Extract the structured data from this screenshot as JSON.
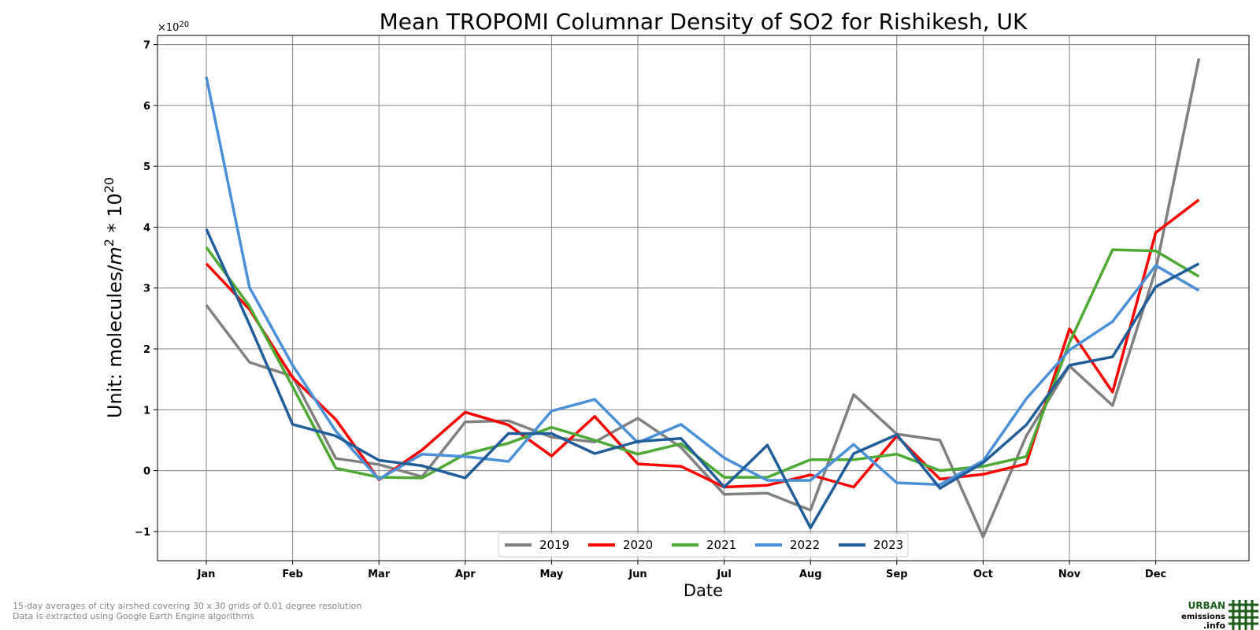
{
  "chart_data": {
    "type": "line",
    "title": "Mean TROPOMI Columnar Density of SO2 for Rishikesh, UK",
    "xlabel": "Date",
    "ylabel_main": "Unit: molecules/",
    "ylabel_m": "m",
    "ylabel_m_exp": "2",
    "ylabel_times": " * 10",
    "ylabel_exp": "20",
    "exponent_prefix": "×10",
    "exponent_power": "20",
    "x_tick_labels": [
      "Jan",
      "Feb",
      "Mar",
      "Apr",
      "May",
      "Jun",
      "Jul",
      "Aug",
      "Sep",
      "Oct",
      "Nov",
      "Dec"
    ],
    "y_ticks": [
      -1,
      0,
      1,
      2,
      3,
      4,
      5,
      6,
      7
    ],
    "y_tick_labels": [
      "−1",
      "0",
      "1",
      "2",
      "3",
      "4",
      "5",
      "6",
      "7"
    ],
    "ylim": [
      -1.48,
      7.15
    ],
    "grid": true,
    "legend_position": "bottom-center",
    "x_periods": [
      "Jan 1-15",
      "Jan 16-31",
      "Feb 1-15",
      "Feb 16-28",
      "Mar 1-15",
      "Mar 16-31",
      "Apr 1-15",
      "Apr 16-30",
      "May 1-15",
      "May 16-31",
      "Jun 1-15",
      "Jun 16-30",
      "Jul 1-15",
      "Jul 16-31",
      "Aug 1-15",
      "Aug 16-31",
      "Sep 1-15",
      "Sep 16-30",
      "Oct 1-15",
      "Oct 16-31",
      "Nov 1-15",
      "Nov 16-30",
      "Dec 1-15",
      "Dec 16-31"
    ],
    "series": [
      {
        "name": "2019",
        "color": "#808080",
        "values": [
          2.72,
          1.78,
          1.55,
          0.2,
          0.1,
          -0.1,
          0.8,
          0.82,
          0.55,
          0.47,
          0.86,
          0.38,
          -0.39,
          -0.37,
          -0.65,
          1.25,
          0.6,
          0.5,
          -1.09,
          0.57,
          1.72,
          1.07,
          3.3,
          6.77
        ]
      },
      {
        "name": "2020",
        "color": "#ff0000",
        "values": [
          3.4,
          2.65,
          1.53,
          0.84,
          -0.15,
          0.34,
          0.96,
          0.75,
          0.24,
          0.89,
          0.11,
          0.07,
          -0.27,
          -0.24,
          -0.07,
          -0.27,
          0.57,
          -0.14,
          -0.06,
          0.11,
          2.33,
          1.29,
          3.91,
          4.45
        ]
      },
      {
        "name": "2021",
        "color": "#4caa34",
        "values": [
          3.67,
          2.7,
          1.38,
          0.04,
          -0.11,
          -0.12,
          0.27,
          0.45,
          0.71,
          0.5,
          0.27,
          0.44,
          -0.11,
          -0.11,
          0.18,
          0.18,
          0.27,
          0.0,
          0.07,
          0.23,
          2.1,
          3.63,
          3.61,
          3.19
        ]
      },
      {
        "name": "2022",
        "color": "#4a90d9",
        "values": [
          6.47,
          3.01,
          1.73,
          0.65,
          -0.14,
          0.27,
          0.23,
          0.15,
          0.98,
          1.17,
          0.46,
          0.76,
          0.21,
          -0.16,
          -0.16,
          0.43,
          -0.2,
          -0.23,
          0.16,
          1.18,
          1.98,
          2.45,
          3.37,
          2.96
        ]
      },
      {
        "name": "2023",
        "color": "#1f5e9a",
        "values": [
          3.97,
          2.4,
          0.76,
          0.57,
          0.17,
          0.08,
          -0.12,
          0.61,
          0.61,
          0.28,
          0.48,
          0.53,
          -0.27,
          0.42,
          -0.94,
          0.28,
          0.59,
          -0.29,
          0.13,
          0.75,
          1.73,
          1.87,
          3.02,
          3.4
        ]
      }
    ]
  },
  "footer": {
    "note_line1": "15-day averages of city airshed covering 30 x 30 grids of 0.01 degree resolution",
    "note_line2": "Data is extracted using Google Earth Engine algorithms"
  },
  "logo": {
    "line1": "URBAN",
    "line2": "emissions",
    "line3": ".info",
    "color": "#1a5c1a"
  }
}
